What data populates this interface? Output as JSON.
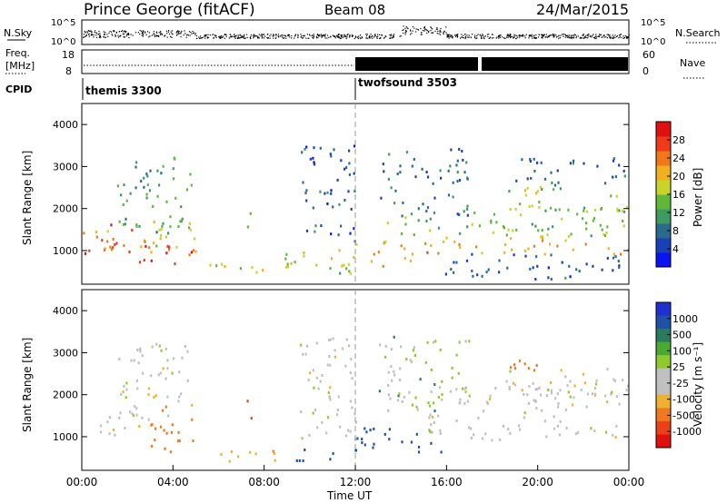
{
  "header": {
    "site": "Prince George (fitACF)",
    "beam": "Beam 08",
    "date": "24/Mar/2015"
  },
  "small_panels": {
    "nsky_label": "N.Sky",
    "nsky_ticks": [
      "10^5",
      "10^0"
    ],
    "nsearch_label": "N.Search",
    "nsearch_ticks": [
      "10^5",
      "10^0"
    ],
    "freq_label": "Freq.",
    "freq_unit": "[MHz]",
    "freq_ticks": [
      "18",
      "8"
    ],
    "nave_label": "Nave",
    "nave_ticks": [
      "60",
      "0"
    ],
    "cpid_label": "CPID",
    "cpid_segments": [
      {
        "name": "themis 3300",
        "start_hour": 0,
        "end_hour": 12
      },
      {
        "name": "twofsound 3503",
        "start_hour": 12,
        "end_hour": 24
      }
    ]
  },
  "colors": {
    "power_scale": [
      "#0a14f0",
      "#1a3fb8",
      "#2a6a8a",
      "#3d9a60",
      "#5fb83a",
      "#c8d42a",
      "#f0b020",
      "#f07818",
      "#ee3a18",
      "#e01010"
    ],
    "velocity_scale": [
      "#2030d0",
      "#2050a8",
      "#2a7a60",
      "#4aaa30",
      "#90c830",
      "#c0c0c0",
      "#c0c0c0",
      "#f0b030",
      "#f07820",
      "#ee4018",
      "#e01010"
    ]
  },
  "chart_data": [
    {
      "type": "heatmap",
      "panel": "power",
      "title": "",
      "xlabel": "",
      "ylabel": "Slant Range [km]",
      "ylim": [
        200,
        4500
      ],
      "xlim_hours": [
        0,
        24
      ],
      "yticks": [
        "1000",
        "2000",
        "3000",
        "4000"
      ],
      "colorbar_label": "Power [dB]",
      "colorbar_range": [
        0,
        32
      ],
      "colorbar_ticks": [
        "4",
        "8",
        "12",
        "16",
        "20",
        "24",
        "28"
      ],
      "echo_regions": [
        {
          "t0": 0.0,
          "t1": 2.8,
          "r0": 900,
          "r1": 1600,
          "level": 26
        },
        {
          "t0": 0.3,
          "t1": 4.0,
          "r0": 1000,
          "r1": 1500,
          "level": 22
        },
        {
          "t0": 1.5,
          "t1": 4.8,
          "r0": 1400,
          "r1": 3200,
          "level": 12
        },
        {
          "t0": 2.5,
          "t1": 4.9,
          "r0": 600,
          "r1": 1100,
          "level": 28
        },
        {
          "t0": 3.0,
          "t1": 5.0,
          "r0": 900,
          "r1": 1700,
          "level": 18
        },
        {
          "t0": 7.0,
          "t1": 7.4,
          "r0": 1400,
          "r1": 1900,
          "level": 14
        },
        {
          "t0": 5.5,
          "t1": 12.0,
          "r0": 400,
          "r1": 700,
          "level": 16
        },
        {
          "t0": 8.8,
          "t1": 12.0,
          "r0": 600,
          "r1": 1100,
          "level": 18
        },
        {
          "t0": 9.5,
          "t1": 12.0,
          "r0": 1200,
          "r1": 3500,
          "level": 6
        },
        {
          "t0": 12.0,
          "t1": 14.5,
          "r0": 600,
          "r1": 1200,
          "level": 20
        },
        {
          "t0": 13.2,
          "t1": 24.0,
          "r0": 1300,
          "r1": 2000,
          "level": 14
        },
        {
          "t0": 13.0,
          "t1": 17.0,
          "r0": 1800,
          "r1": 3400,
          "level": 8
        },
        {
          "t0": 15.0,
          "t1": 24.0,
          "r0": 900,
          "r1": 1300,
          "level": 22
        },
        {
          "t0": 15.5,
          "t1": 24.0,
          "r0": 300,
          "r1": 900,
          "level": 6
        },
        {
          "t0": 18.5,
          "t1": 24.0,
          "r0": 1900,
          "r1": 2500,
          "level": 16
        },
        {
          "t0": 19.0,
          "t1": 24.0,
          "r0": 2500,
          "r1": 3200,
          "level": 8
        }
      ]
    },
    {
      "type": "heatmap",
      "panel": "velocity",
      "title": "",
      "xlabel": "Time UT",
      "ylabel": "Slant Range [km]",
      "ylim": [
        200,
        4500
      ],
      "xlim_hours": [
        0,
        24
      ],
      "xticks": [
        "00:00",
        "04:00",
        "08:00",
        "12:00",
        "16:00",
        "20:00",
        "00:00"
      ],
      "yticks": [
        "1000",
        "2000",
        "3000",
        "4000"
      ],
      "colorbar_label": "Velocity [m s⁻¹]",
      "colorbar_ticks": [
        "1000",
        "500",
        "100",
        "25",
        "-25",
        "-100",
        "-500",
        "-1000"
      ],
      "echo_regions": [
        {
          "t0": 0.0,
          "t1": 3.0,
          "r0": 1000,
          "r1": 1600,
          "level": 0
        },
        {
          "t0": 1.5,
          "t1": 4.8,
          "r0": 1400,
          "r1": 3200,
          "level": 0
        },
        {
          "t0": 2.6,
          "t1": 4.9,
          "r0": 600,
          "r1": 1100,
          "level": -150
        },
        {
          "t0": 3.0,
          "t1": 4.8,
          "r0": 1100,
          "r1": 1700,
          "level": -400
        },
        {
          "t0": 7.0,
          "t1": 7.4,
          "r0": 1400,
          "r1": 1900,
          "level": -700
        },
        {
          "t0": 5.5,
          "t1": 9.0,
          "r0": 400,
          "r1": 700,
          "level": -80
        },
        {
          "t0": 9.0,
          "t1": 12.0,
          "r0": 400,
          "r1": 700,
          "level": 150
        },
        {
          "t0": 9.5,
          "t1": 12.0,
          "r0": 800,
          "r1": 3400,
          "level": 0
        },
        {
          "t0": 12.0,
          "t1": 16.0,
          "r0": 600,
          "r1": 1200,
          "level": 150
        },
        {
          "t0": 13.0,
          "t1": 17.0,
          "r0": 1600,
          "r1": 3400,
          "level": 30
        },
        {
          "t0": 15.0,
          "t1": 24.0,
          "r0": 900,
          "r1": 2200,
          "level": 0
        },
        {
          "t0": 18.5,
          "t1": 24.0,
          "r0": 2000,
          "r1": 2600,
          "level": 0
        },
        {
          "t0": 18.5,
          "t1": 20.0,
          "r0": 2500,
          "r1": 3100,
          "level": -300
        }
      ]
    }
  ]
}
